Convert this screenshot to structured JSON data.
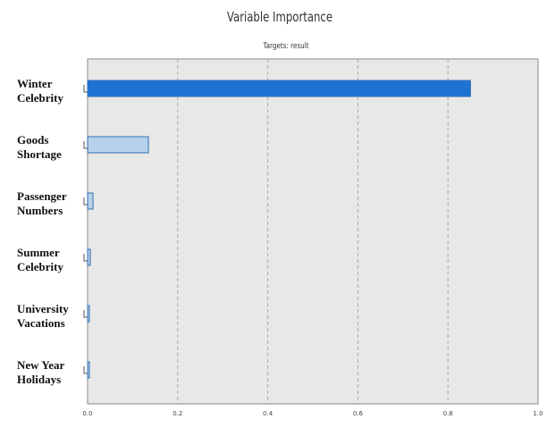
{
  "chart_data": {
    "type": "bar",
    "orientation": "horizontal",
    "title": "Variable Importance",
    "subtitle": "Targets: result",
    "categories": [
      [
        "Winter",
        "Celebrity"
      ],
      [
        "Goods",
        "Shortage"
      ],
      [
        "Passenger",
        "Numbers"
      ],
      [
        "Summer",
        "Celebrity"
      ],
      [
        "University",
        "Vacations"
      ],
      [
        "New Year",
        "Holidays"
      ]
    ],
    "values": [
      0.85,
      0.135,
      0.012,
      0.006,
      0.003,
      0.001
    ],
    "xlim": [
      0,
      1
    ],
    "xticks": [
      "0.0",
      "0.2",
      "0.4",
      "0.6",
      "0.8",
      "1.0"
    ],
    "grid": "vertical-dashed",
    "colors": {
      "plot_bg": "#e8e8e8",
      "top_bar": "#1e73d2",
      "other_bars": "#b7d1ea",
      "bar_edge": "#2f6fb3",
      "grid": "#a8a8a8"
    }
  }
}
